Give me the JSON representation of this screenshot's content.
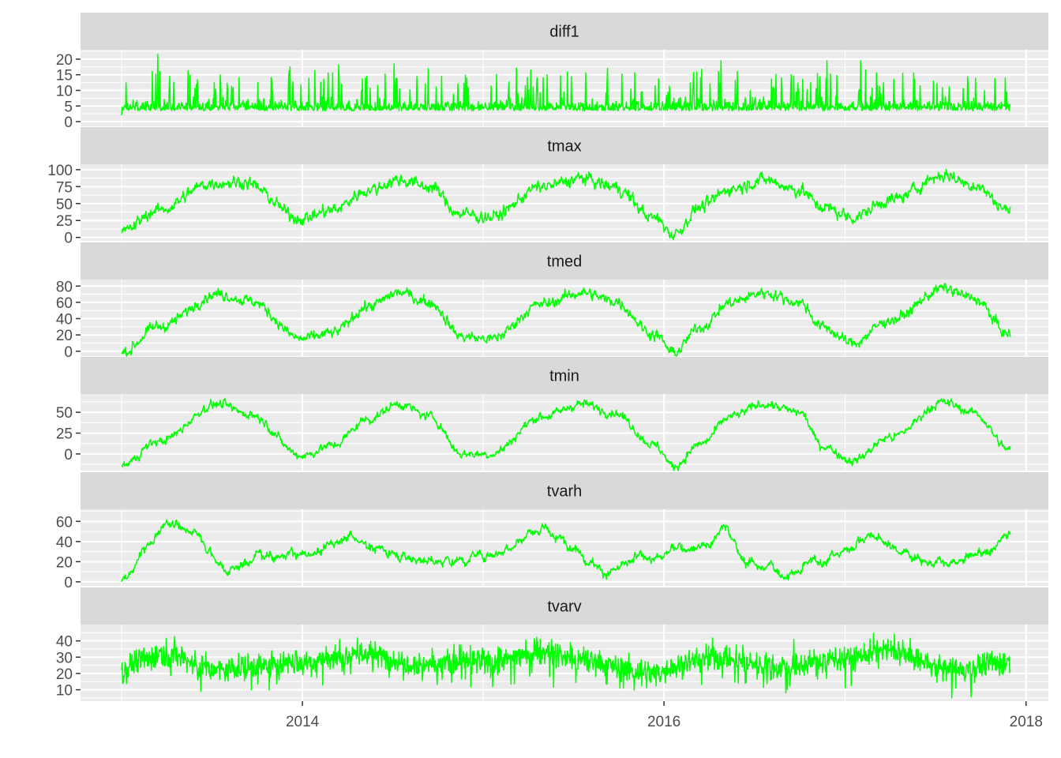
{
  "chart_data": {
    "type": "line",
    "layout": "faceted, vertically stacked, shared x axis",
    "line_color": "#00ff00",
    "strip_background": "#d9d9d9",
    "panel_background": "#ebebeb",
    "grid_color": "#ffffff",
    "grid": true,
    "x_axis": {
      "type": "date",
      "range": [
        "2013-01-01",
        "2017-11-30"
      ],
      "limits": [
        "2012-10-10",
        "2018-02-15"
      ],
      "ticks": [
        {
          "value": "2014-01-01",
          "label": "2014"
        },
        {
          "value": "2016-01-01",
          "label": "2016"
        },
        {
          "value": "2018-01-01",
          "label": "2018"
        }
      ]
    },
    "facets": [
      {
        "label": "diff1",
        "ylim": [
          -1.5,
          23
        ],
        "yticks": [
          0,
          5,
          10,
          15,
          20
        ],
        "kind": "spiky",
        "baseline": 3.5,
        "noise": 2.5,
        "spike_rate": 0.12,
        "spike_max": 12,
        "min": 0.5,
        "points": [
          [
            "2013-01-01",
            2
          ],
          [
            "2013-03-15",
            21.5
          ],
          [
            "2014-07-05",
            18.5
          ],
          [
            "2015-04-20",
            14
          ],
          [
            "2016-04-25",
            19.5
          ],
          [
            "2016-11-25",
            19.5
          ],
          [
            "2017-02-01",
            19.5
          ],
          [
            "2017-11-20",
            14
          ]
        ]
      },
      {
        "label": "tmax",
        "ylim": [
          -5,
          108
        ],
        "yticks": [
          0,
          25,
          50,
          75,
          100
        ],
        "kind": "seasonal",
        "noise": 7,
        "points": [
          [
            "2013-01-01",
            8
          ],
          [
            "2013-03-15",
            40
          ],
          [
            "2013-07-01",
            80
          ],
          [
            "2013-09-01",
            82
          ],
          [
            "2014-01-01",
            28
          ],
          [
            "2014-03-01",
            40
          ],
          [
            "2014-05-15",
            70
          ],
          [
            "2014-07-15",
            85
          ],
          [
            "2014-09-15",
            75
          ],
          [
            "2014-11-15",
            35
          ],
          [
            "2015-01-15",
            30
          ],
          [
            "2015-05-01",
            75
          ],
          [
            "2015-07-20",
            87
          ],
          [
            "2015-09-20",
            75
          ],
          [
            "2015-12-15",
            28
          ],
          [
            "2016-01-20",
            5
          ],
          [
            "2016-03-15",
            45
          ],
          [
            "2016-05-15",
            72
          ],
          [
            "2016-07-20",
            85
          ],
          [
            "2016-10-01",
            70
          ],
          [
            "2016-11-15",
            45
          ],
          [
            "2017-01-15",
            30
          ],
          [
            "2017-04-01",
            55
          ],
          [
            "2017-07-20",
            92
          ],
          [
            "2017-09-15",
            78
          ],
          [
            "2017-11-30",
            40
          ]
        ]
      },
      {
        "label": "tmed",
        "ylim": [
          -6,
          88
        ],
        "yticks": [
          0,
          20,
          40,
          60,
          80
        ],
        "kind": "seasonal",
        "noise": 5,
        "points": [
          [
            "2013-01-01",
            -2
          ],
          [
            "2013-03-15",
            30
          ],
          [
            "2013-07-15",
            70
          ],
          [
            "2013-09-15",
            62
          ],
          [
            "2014-01-01",
            15
          ],
          [
            "2014-03-01",
            22
          ],
          [
            "2014-05-15",
            55
          ],
          [
            "2014-07-15",
            72
          ],
          [
            "2014-09-15",
            60
          ],
          [
            "2014-11-20",
            18
          ],
          [
            "2015-01-15",
            15
          ],
          [
            "2015-05-01",
            58
          ],
          [
            "2015-07-20",
            72
          ],
          [
            "2015-09-20",
            62
          ],
          [
            "2015-12-15",
            20
          ],
          [
            "2016-01-20",
            -2
          ],
          [
            "2016-03-15",
            30
          ],
          [
            "2016-05-15",
            60
          ],
          [
            "2016-07-20",
            72
          ],
          [
            "2016-10-01",
            60
          ],
          [
            "2016-11-15",
            30
          ],
          [
            "2017-01-15",
            10
          ],
          [
            "2017-04-01",
            38
          ],
          [
            "2017-07-20",
            77
          ],
          [
            "2017-09-15",
            65
          ],
          [
            "2017-11-30",
            20
          ]
        ]
      },
      {
        "label": "tmin",
        "ylim": [
          -20,
          72
        ],
        "yticks": [
          0,
          25,
          50
        ],
        "kind": "seasonal",
        "noise": 4,
        "points": [
          [
            "2013-01-01",
            -14
          ],
          [
            "2013-03-15",
            15
          ],
          [
            "2013-07-15",
            60
          ],
          [
            "2013-09-15",
            48
          ],
          [
            "2014-01-01",
            -2
          ],
          [
            "2014-03-01",
            10
          ],
          [
            "2014-05-15",
            42
          ],
          [
            "2014-07-15",
            60
          ],
          [
            "2014-09-15",
            45
          ],
          [
            "2014-11-20",
            0
          ],
          [
            "2015-01-15",
            0
          ],
          [
            "2015-05-01",
            45
          ],
          [
            "2015-07-20",
            60
          ],
          [
            "2015-09-20",
            50
          ],
          [
            "2015-12-15",
            10
          ],
          [
            "2016-01-20",
            -15
          ],
          [
            "2016-03-15",
            12
          ],
          [
            "2016-05-15",
            45
          ],
          [
            "2016-07-20",
            60
          ],
          [
            "2016-10-01",
            50
          ],
          [
            "2016-11-15",
            10
          ],
          [
            "2017-01-15",
            -8
          ],
          [
            "2017-04-01",
            20
          ],
          [
            "2017-07-20",
            62
          ],
          [
            "2017-09-15",
            50
          ],
          [
            "2017-11-30",
            5
          ]
        ]
      },
      {
        "label": "tvarh",
        "ylim": [
          -4,
          72
        ],
        "yticks": [
          0,
          20,
          40,
          60
        ],
        "kind": "wavy",
        "noise": 7,
        "min": 2,
        "points": [
          [
            "2013-01-01",
            0
          ],
          [
            "2013-03-01",
            40
          ],
          [
            "2013-04-15",
            60
          ],
          [
            "2013-06-01",
            45
          ],
          [
            "2013-08-01",
            15
          ],
          [
            "2013-11-01",
            30
          ],
          [
            "2014-01-01",
            25
          ],
          [
            "2014-04-01",
            45
          ],
          [
            "2014-07-01",
            30
          ],
          [
            "2014-10-01",
            20
          ],
          [
            "2015-01-01",
            28
          ],
          [
            "2015-04-15",
            50
          ],
          [
            "2015-07-01",
            35
          ],
          [
            "2015-09-15",
            10
          ],
          [
            "2015-12-01",
            25
          ],
          [
            "2016-04-01",
            40
          ],
          [
            "2016-05-01",
            55
          ],
          [
            "2016-06-15",
            20
          ],
          [
            "2016-09-15",
            8
          ],
          [
            "2016-12-01",
            25
          ],
          [
            "2017-02-15",
            45
          ],
          [
            "2017-05-01",
            30
          ],
          [
            "2017-08-01",
            15
          ],
          [
            "2017-10-15",
            30
          ],
          [
            "2017-11-30",
            50
          ]
        ]
      },
      {
        "label": "tvarv",
        "ylim": [
          3,
          50
        ],
        "yticks": [
          10,
          20,
          30,
          40
        ],
        "kind": "noisy",
        "baseline": 28,
        "noise": 5,
        "dip_rate": 0.06,
        "dip_max": 15,
        "min": 5,
        "points": [
          [
            "2013-01-01",
            22
          ],
          [
            "2013-02-01",
            27
          ],
          [
            "2013-04-01",
            33
          ],
          [
            "2013-07-01",
            22
          ],
          [
            "2014-01-01",
            27
          ],
          [
            "2014-05-01",
            32
          ],
          [
            "2014-09-01",
            26
          ],
          [
            "2015-01-01",
            27
          ],
          [
            "2015-05-01",
            33
          ],
          [
            "2015-08-01",
            27
          ],
          [
            "2015-12-01",
            20
          ],
          [
            "2016-04-01",
            30
          ],
          [
            "2016-09-01",
            24
          ],
          [
            "2017-01-01",
            30
          ],
          [
            "2017-04-01",
            34
          ],
          [
            "2017-08-01",
            22
          ],
          [
            "2017-11-30",
            27
          ]
        ]
      }
    ]
  }
}
